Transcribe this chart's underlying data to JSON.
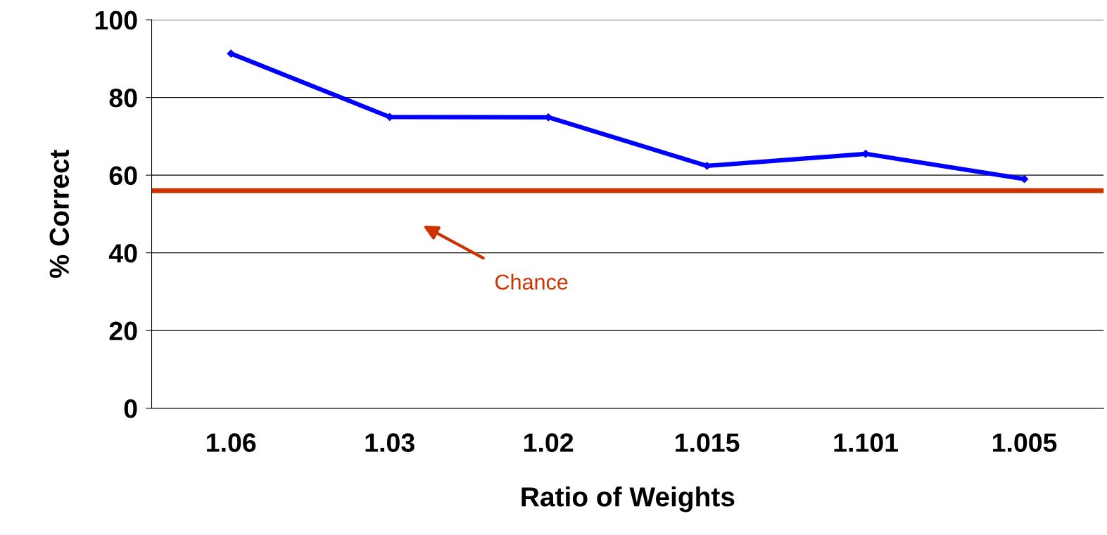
{
  "chart_data": {
    "type": "line",
    "xlabel": "Ratio of Weights",
    "ylabel": "% Correct",
    "categories": [
      "1.06",
      "1.03",
      "1.02",
      "1.015",
      "1.101",
      "1.005"
    ],
    "series": [
      {
        "color": "#0000ff",
        "values": [
          91.3,
          75.0,
          74.9,
          62.4,
          65.5,
          59.0
        ]
      }
    ],
    "ylim": [
      0,
      100
    ],
    "yticks": [
      0,
      20,
      40,
      60,
      80,
      100
    ],
    "grid": "y",
    "marker": "diamond",
    "line_style": "solid",
    "ref_lines": [
      {
        "axis": "y",
        "value": 56,
        "label": "Chance",
        "color": "#cc3300"
      }
    ]
  }
}
